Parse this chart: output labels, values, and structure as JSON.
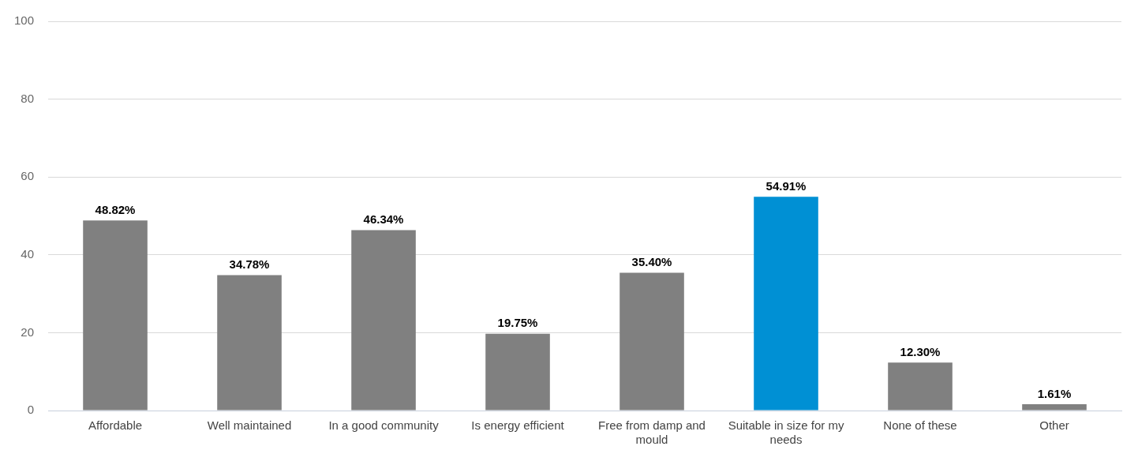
{
  "chart_data": {
    "type": "bar",
    "categories": [
      "Affordable",
      "Well maintained",
      "In a good community",
      "Is energy efficient",
      "Free from damp and mould",
      "Suitable in size for my needs",
      "None of these",
      "Other"
    ],
    "values": [
      48.82,
      34.78,
      46.34,
      19.75,
      35.4,
      54.91,
      12.3,
      1.61
    ],
    "value_labels": [
      "48.82%",
      "34.78%",
      "46.34%",
      "19.75%",
      "35.40%",
      "54.91%",
      "12.30%",
      "1.61%"
    ],
    "colors": [
      "#808080",
      "#808080",
      "#808080",
      "#808080",
      "#808080",
      "#0090d4",
      "#808080",
      "#808080"
    ],
    "ylim": [
      0,
      100
    ],
    "yticks": [
      0,
      20,
      40,
      60,
      80,
      100
    ],
    "grid": "y",
    "legend": false
  }
}
